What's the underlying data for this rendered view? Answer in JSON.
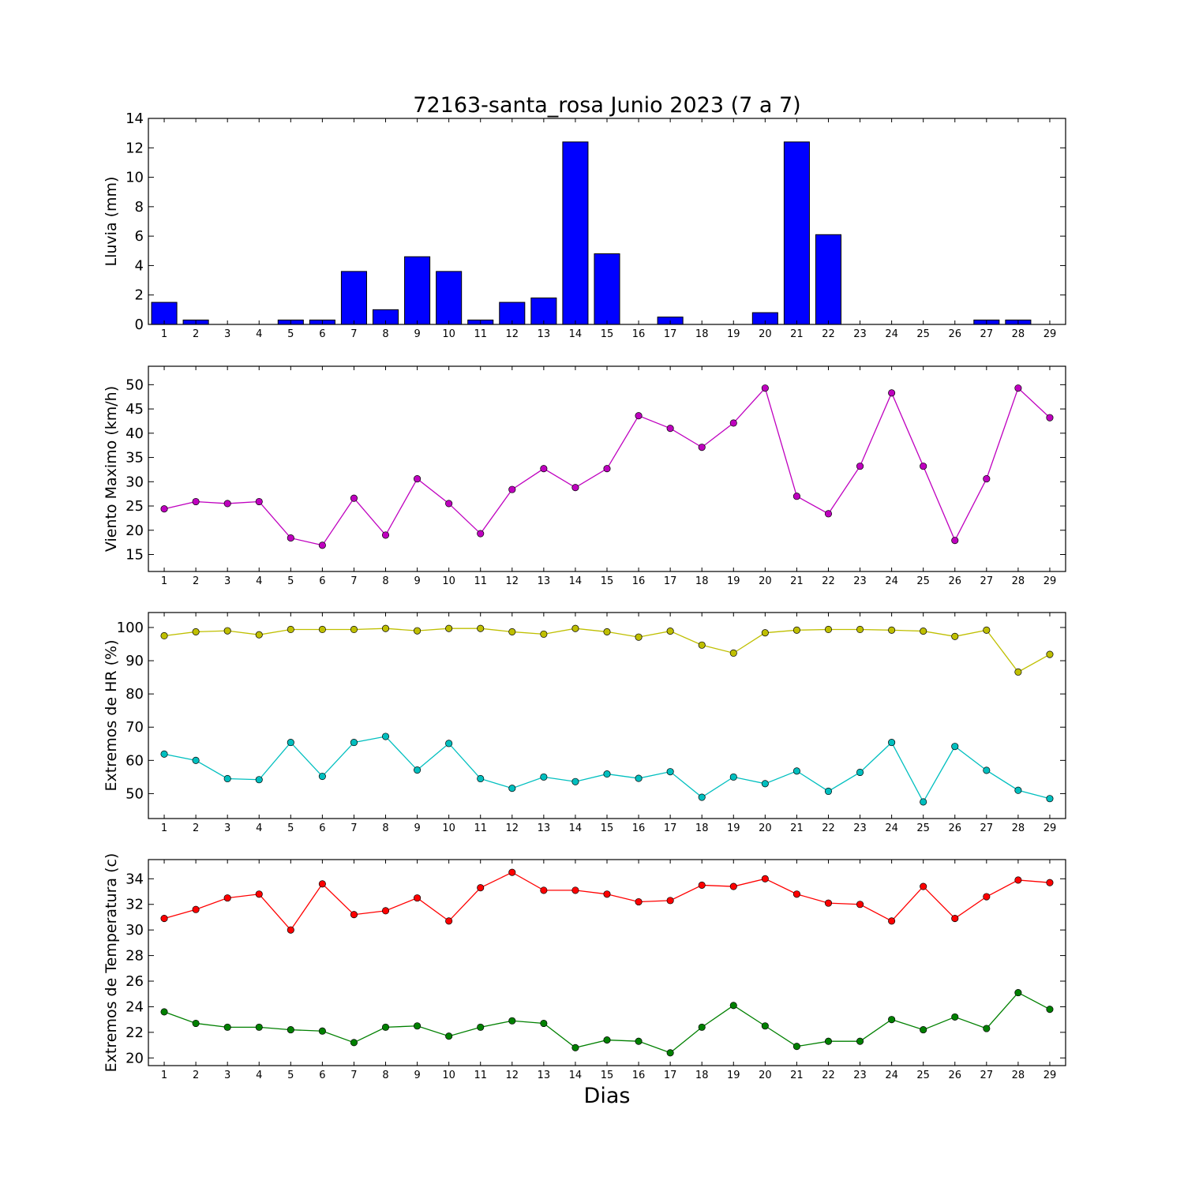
{
  "chart_data": [
    {
      "type": "bar",
      "title": "72163-santa_rosa Junio 2023  (7 a 7)",
      "ylabel": "Lluvia (mm)",
      "xlabel": "",
      "ylim": [
        0,
        14
      ],
      "yticks": [
        0,
        2,
        4,
        6,
        8,
        10,
        12,
        14
      ],
      "categories": [
        "1",
        "2",
        "3",
        "4",
        "5",
        "6",
        "7",
        "8",
        "9",
        "10",
        "11",
        "12",
        "13",
        "14",
        "15",
        "16",
        "17",
        "18",
        "19",
        "20",
        "21",
        "22",
        "23",
        "24",
        "25",
        "26",
        "27",
        "28",
        "29"
      ],
      "series": [
        {
          "color": "#0000ff",
          "values": [
            1.5,
            0.3,
            0,
            0,
            0.3,
            0.3,
            3.6,
            1.0,
            4.6,
            3.6,
            0.3,
            1.5,
            1.8,
            12.4,
            4.8,
            0,
            0.5,
            0,
            0,
            0.8,
            12.4,
            6.1,
            0,
            0,
            0,
            0,
            0.3,
            0.3,
            0
          ]
        }
      ]
    },
    {
      "type": "line",
      "ylabel": "Viento Maximo (km/h)",
      "xlabel": "",
      "ylim": [
        11.5,
        53.8
      ],
      "yticks": [
        15,
        20,
        25,
        30,
        35,
        40,
        45,
        50
      ],
      "categories": [
        "1",
        "2",
        "3",
        "4",
        "5",
        "6",
        "7",
        "8",
        "9",
        "10",
        "11",
        "12",
        "13",
        "14",
        "15",
        "16",
        "17",
        "18",
        "19",
        "20",
        "21",
        "22",
        "23",
        "24",
        "25",
        "26",
        "27",
        "28",
        "29"
      ],
      "series": [
        {
          "color": "#bf00bf",
          "values": [
            24.4,
            25.9,
            25.5,
            25.9,
            18.4,
            16.9,
            26.6,
            19.0,
            30.6,
            25.5,
            19.3,
            28.4,
            32.7,
            28.8,
            32.7,
            43.6,
            41.0,
            37.1,
            42.1,
            49.3,
            27.0,
            23.4,
            33.2,
            48.3,
            33.2,
            17.9,
            30.6,
            49.3,
            43.2
          ]
        }
      ]
    },
    {
      "type": "line",
      "ylabel": "Extremos de HR (%)",
      "xlabel": "",
      "ylim": [
        42.5,
        104.5
      ],
      "yticks": [
        50,
        60,
        70,
        80,
        90,
        100
      ],
      "categories": [
        "1",
        "2",
        "3",
        "4",
        "5",
        "6",
        "7",
        "8",
        "9",
        "10",
        "11",
        "12",
        "13",
        "14",
        "15",
        "16",
        "17",
        "18",
        "19",
        "20",
        "21",
        "22",
        "23",
        "24",
        "25",
        "26",
        "27",
        "28",
        "29"
      ],
      "series": [
        {
          "color": "#bfbf00",
          "values": [
            97.5,
            98.7,
            99.0,
            97.8,
            99.4,
            99.4,
            99.4,
            99.7,
            99.0,
            99.7,
            99.7,
            98.7,
            98.0,
            99.7,
            98.7,
            97.1,
            98.9,
            94.7,
            92.3,
            98.4,
            99.2,
            99.4,
            99.4,
            99.2,
            98.9,
            97.3,
            99.2,
            86.6,
            91.9
          ]
        },
        {
          "color": "#00bfbf",
          "values": [
            61.9,
            60.0,
            54.5,
            54.2,
            65.4,
            55.2,
            65.4,
            67.2,
            57.1,
            65.1,
            54.5,
            51.6,
            55.0,
            53.6,
            55.9,
            54.6,
            56.6,
            48.9,
            55.0,
            53.0,
            56.8,
            50.7,
            56.4,
            65.4,
            47.5,
            64.2,
            57.0,
            51.0,
            48.5
          ]
        }
      ]
    },
    {
      "type": "line",
      "ylabel": "Extremos de Temperatura (c)",
      "xlabel": "Dias",
      "ylim": [
        19.4,
        35.5
      ],
      "yticks": [
        20,
        22,
        24,
        26,
        28,
        30,
        32,
        34
      ],
      "categories": [
        "1",
        "2",
        "3",
        "4",
        "5",
        "6",
        "7",
        "8",
        "9",
        "10",
        "11",
        "12",
        "13",
        "14",
        "15",
        "16",
        "17",
        "18",
        "19",
        "20",
        "21",
        "22",
        "23",
        "24",
        "25",
        "26",
        "27",
        "28",
        "29"
      ],
      "series": [
        {
          "color": "#ff0000",
          "values": [
            30.9,
            31.6,
            32.5,
            32.8,
            30.0,
            33.6,
            31.2,
            31.5,
            32.5,
            30.7,
            33.3,
            34.5,
            33.1,
            33.1,
            32.8,
            32.2,
            32.3,
            33.5,
            33.4,
            34.0,
            32.8,
            32.1,
            32.0,
            30.7,
            33.4,
            30.9,
            32.6,
            33.9,
            33.7
          ]
        },
        {
          "color": "#008000",
          "values": [
            23.6,
            22.7,
            22.4,
            22.4,
            22.2,
            22.1,
            21.2,
            22.4,
            22.5,
            21.7,
            22.4,
            22.9,
            22.7,
            20.8,
            21.4,
            21.3,
            20.4,
            22.4,
            24.1,
            22.5,
            20.9,
            21.3,
            21.3,
            23.0,
            22.2,
            23.2,
            22.3,
            25.1,
            23.8
          ]
        }
      ]
    }
  ]
}
